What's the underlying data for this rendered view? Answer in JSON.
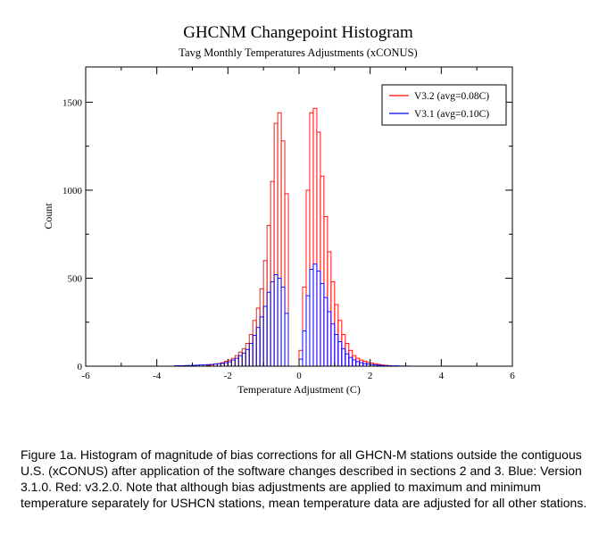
{
  "chart_data": {
    "type": "histogram",
    "title": "GHCNM Changepoint Histogram",
    "subtitle": "Tavg Monthly Temperatures Adjustments (xCONUS)",
    "xlabel": "Temperature Adjustment (C)",
    "ylabel": "Count",
    "xlim": [
      -6,
      6
    ],
    "ylim": [
      0,
      1700
    ],
    "xticks": [
      "-6",
      "-4",
      "-2",
      "0",
      "2",
      "4",
      "6"
    ],
    "yticks": [
      "0",
      "500",
      "1000",
      "1500"
    ],
    "bin_width": 0.1,
    "legend_position": "top-right",
    "x": [
      -3.5,
      -3.4,
      -3.3,
      -3.2,
      -3.1,
      -3.0,
      -2.9,
      -2.8,
      -2.7,
      -2.6,
      -2.5,
      -2.4,
      -2.3,
      -2.2,
      -2.1,
      -2.0,
      -1.9,
      -1.8,
      -1.7,
      -1.6,
      -1.5,
      -1.4,
      -1.3,
      -1.2,
      -1.1,
      -1.0,
      -0.9,
      -0.8,
      -0.7,
      -0.6,
      -0.5,
      -0.4,
      -0.3,
      -0.2,
      -0.1,
      0.0,
      0.1,
      0.2,
      0.3,
      0.4,
      0.5,
      0.6,
      0.7,
      0.8,
      0.9,
      1.0,
      1.1,
      1.2,
      1.3,
      1.4,
      1.5,
      1.6,
      1.7,
      1.8,
      1.9,
      2.0,
      2.1,
      2.2,
      2.3,
      2.4,
      2.5,
      2.6,
      2.7,
      2.8,
      2.9,
      3.0,
      3.1,
      3.2,
      3.3,
      3.4
    ],
    "series": [
      {
        "name": "V3.2 (avg=0.08C)",
        "color": "#ff0000",
        "values": [
          0,
          0,
          0,
          0,
          0,
          0,
          0,
          0,
          0,
          5,
          8,
          12,
          15,
          20,
          28,
          35,
          45,
          60,
          80,
          100,
          130,
          180,
          260,
          330,
          440,
          600,
          800,
          1050,
          1380,
          1440,
          1280,
          980,
          0,
          0,
          0,
          90,
          450,
          1000,
          1440,
          1465,
          1330,
          1080,
          850,
          650,
          480,
          350,
          260,
          180,
          130,
          90,
          60,
          45,
          35,
          28,
          22,
          18,
          14,
          10,
          7,
          5,
          3,
          0,
          0,
          0,
          0,
          0,
          0,
          0,
          0,
          0
        ]
      },
      {
        "name": "V3.1 (avg=0.10C)",
        "color": "#0000ff",
        "values": [
          3,
          3,
          3,
          4,
          4,
          5,
          6,
          7,
          8,
          9,
          10,
          12,
          14,
          16,
          20,
          25,
          35,
          45,
          60,
          75,
          95,
          130,
          175,
          220,
          280,
          340,
          420,
          480,
          520,
          500,
          450,
          300,
          0,
          0,
          0,
          40,
          200,
          400,
          550,
          580,
          540,
          470,
          390,
          310,
          240,
          180,
          140,
          100,
          70,
          50,
          36,
          26,
          20,
          15,
          12,
          9,
          7,
          5,
          4,
          3,
          3,
          2,
          2,
          1,
          1,
          1,
          0,
          0,
          0,
          0
        ]
      }
    ]
  },
  "caption": "Figure 1a. Histogram of magnitude of bias corrections for all GHCN-M stations outside the contiguous U.S. (xCONUS) after application of the software changes described in sections 2 and 3. Blue: Version 3.1.0. Red: v3.2.0. Note that although bias adjustments are applied to maximum and minimum temperature separately for USHCN stations, mean temperature data are adjusted for all other stations."
}
